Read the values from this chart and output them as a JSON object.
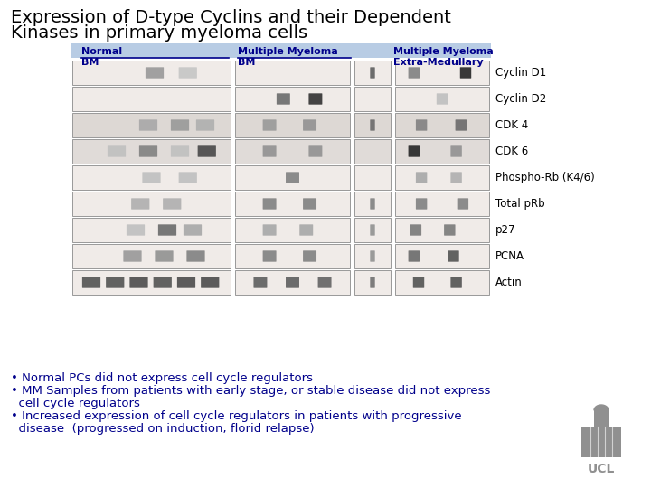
{
  "title_line1": "Expression of D-type Cyclins and their Dependent",
  "title_line2": "Kinases in primary myeloma cells",
  "title_fontsize": 14,
  "title_color": "#000000",
  "bg_color": "#ffffff",
  "header_bg": "#b8cce4",
  "col_header_color": "#00008B",
  "row_labels": [
    "Cyclin D1",
    "Cyclin D2",
    "CDK 4",
    "CDK 6",
    "Phospho-Rb (K4/6)",
    "Total pRb",
    "p27",
    "PCNA",
    "Actin"
  ],
  "row_label_color": "#000000",
  "bullet_color": "#00008B",
  "bullet_fontsize": 9.5,
  "panel_bg": "#f0ebe8",
  "band_color_light": "#c8c0b8",
  "band_color_dark": "#404040"
}
